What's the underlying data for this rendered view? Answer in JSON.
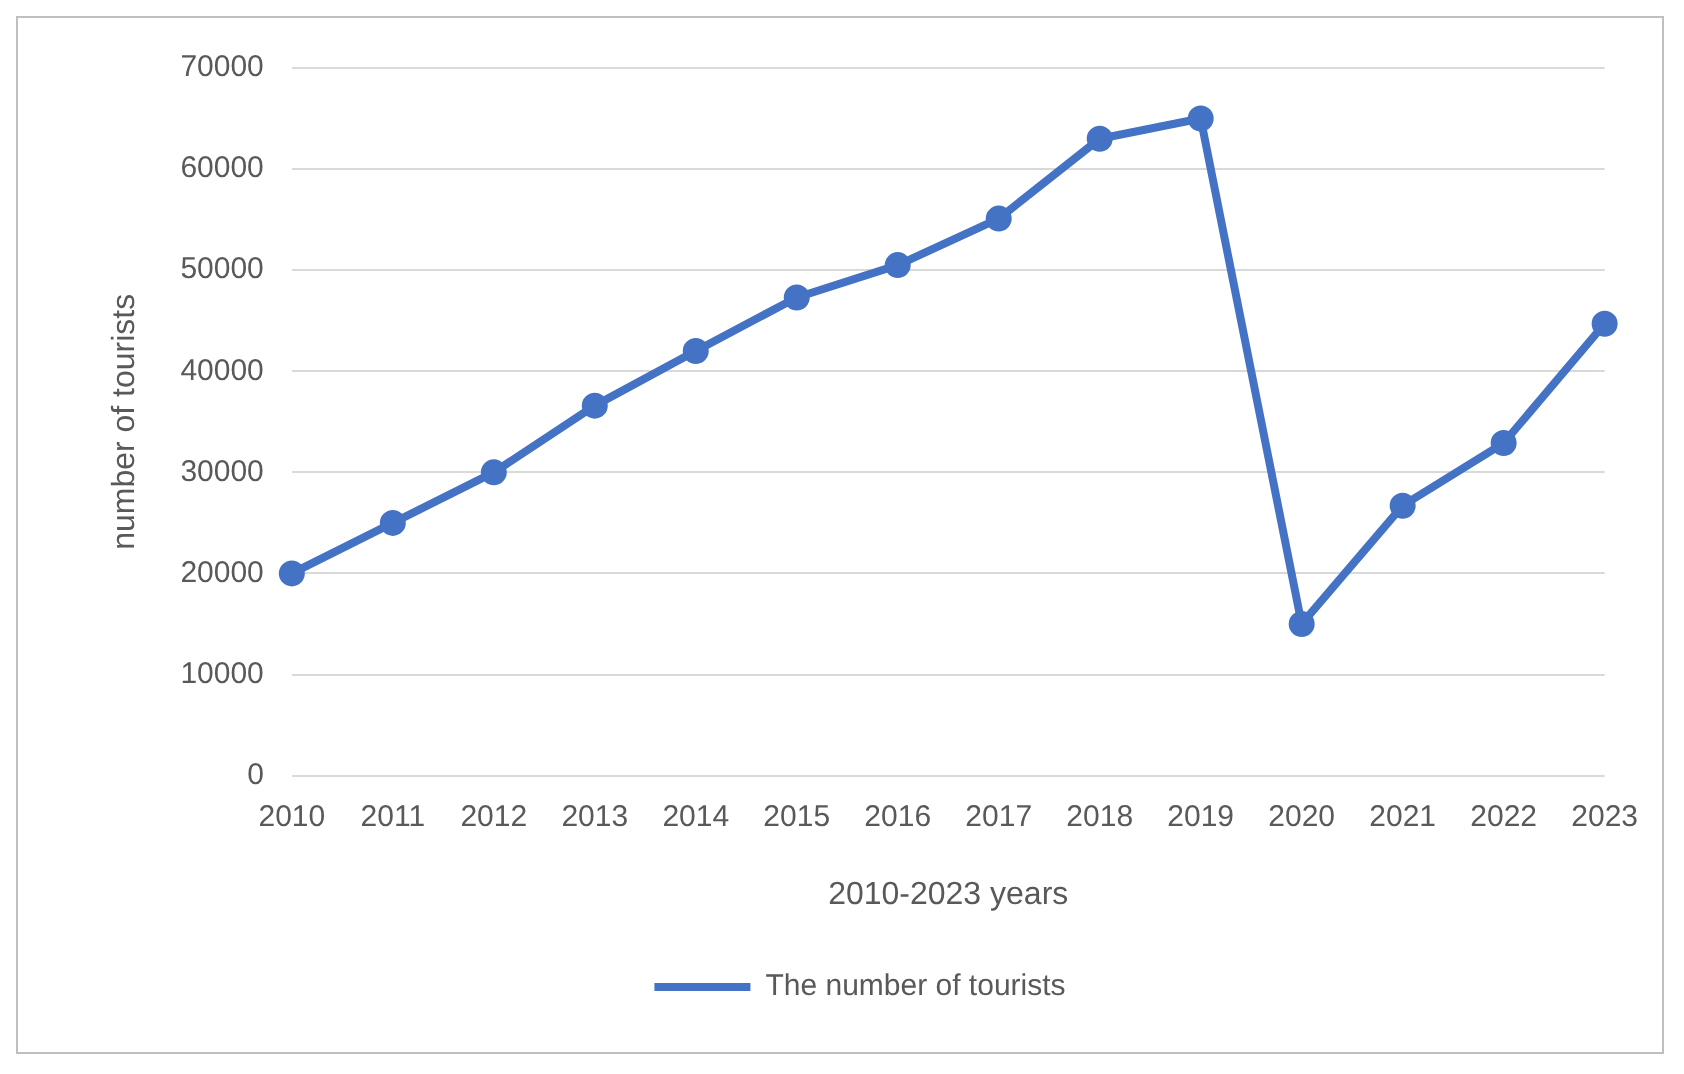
{
  "chart_data": {
    "type": "line",
    "xlabel": "2010-2023 years",
    "ylabel": "number of tourists",
    "categories": [
      "2010",
      "2011",
      "2012",
      "2013",
      "2014",
      "2015",
      "2016",
      "2017",
      "2018",
      "2019",
      "2020",
      "2021",
      "2022",
      "2023"
    ],
    "series": [
      {
        "name": "The number of tourists",
        "color": "#4472c4",
        "values": [
          20000,
          25000,
          30000,
          36600,
          42000,
          47300,
          50500,
          55100,
          63000,
          65000,
          15000,
          26700,
          32900,
          44700
        ]
      }
    ],
    "ylim": [
      0,
      70000
    ],
    "yticks": [
      0,
      10000,
      20000,
      30000,
      40000,
      50000,
      60000,
      70000
    ],
    "grid": "y",
    "legend": "bottom",
    "marker": "circle",
    "line_style": "solid"
  }
}
